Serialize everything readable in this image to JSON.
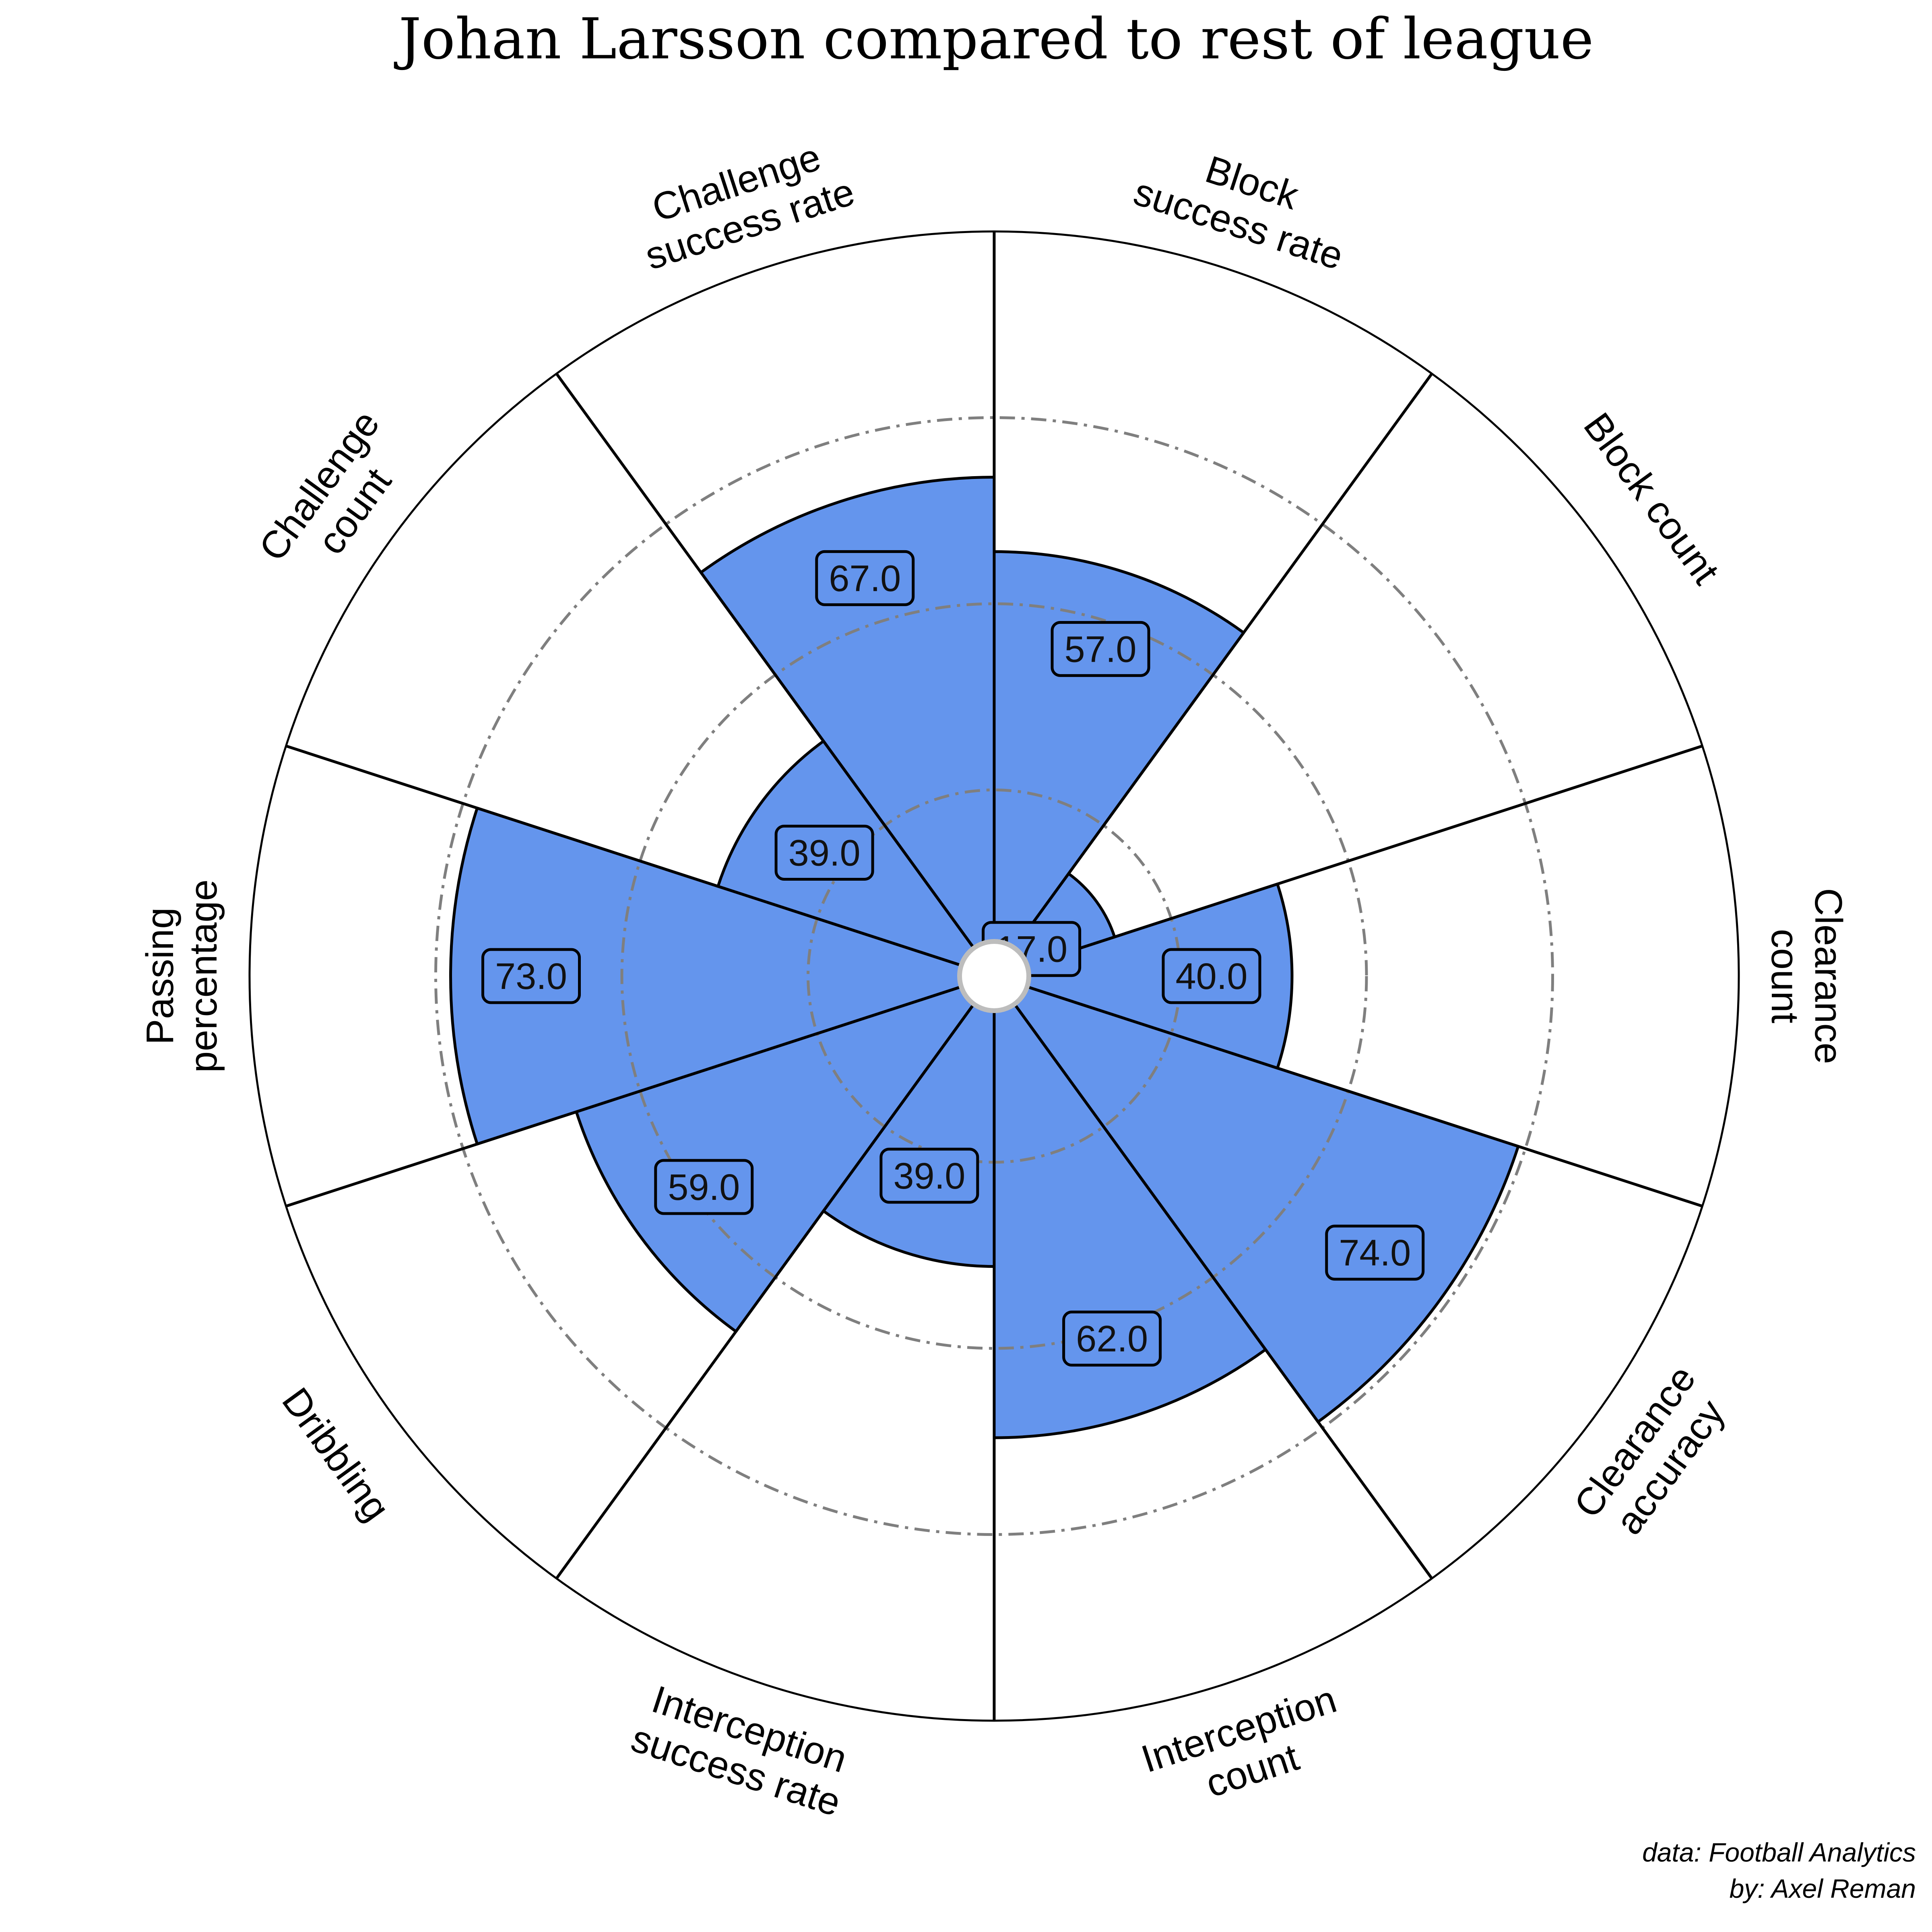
{
  "chart_data": {
    "type": "polar-bar",
    "title": "Johan Larsson compared to rest of league",
    "parameters": [
      {
        "label_lines": [
          "Clearance",
          "count"
        ],
        "value": 40.0,
        "value_text": "40.0"
      },
      {
        "label_lines": [
          "Block count"
        ],
        "value": 17.0,
        "value_text": "17.0"
      },
      {
        "label_lines": [
          "Block",
          "success rate"
        ],
        "value": 57.0,
        "value_text": "57.0"
      },
      {
        "label_lines": [
          "Challenge",
          "success rate"
        ],
        "value": 67.0,
        "value_text": "67.0"
      },
      {
        "label_lines": [
          "Challenge",
          "count"
        ],
        "value": 39.0,
        "value_text": "39.0"
      },
      {
        "label_lines": [
          "Passing",
          "percentage"
        ],
        "value": 73.0,
        "value_text": "73.0"
      },
      {
        "label_lines": [
          "Dribbling"
        ],
        "value": 59.0,
        "value_text": "59.0"
      },
      {
        "label_lines": [
          "Interception",
          "success rate"
        ],
        "value": 39.0,
        "value_text": "39.0"
      },
      {
        "label_lines": [
          "Interception",
          "count"
        ],
        "value": 62.0,
        "value_text": "62.0"
      },
      {
        "label_lines": [
          "Clearance",
          "accuracy"
        ],
        "value": 74.0,
        "value_text": "74.0"
      }
    ],
    "rlim": [
      0,
      100
    ],
    "gridlines": [
      25,
      50,
      75
    ],
    "colors": {
      "bar_fill": "#6495ED",
      "bar_edge": "#000000",
      "grid": "#7f7f7f",
      "background": "#ffffff",
      "center_circle_edge": "#bdbdbd"
    }
  },
  "credits": {
    "data_source": "data: Football Analytics",
    "author": "by: Axel Reman"
  }
}
